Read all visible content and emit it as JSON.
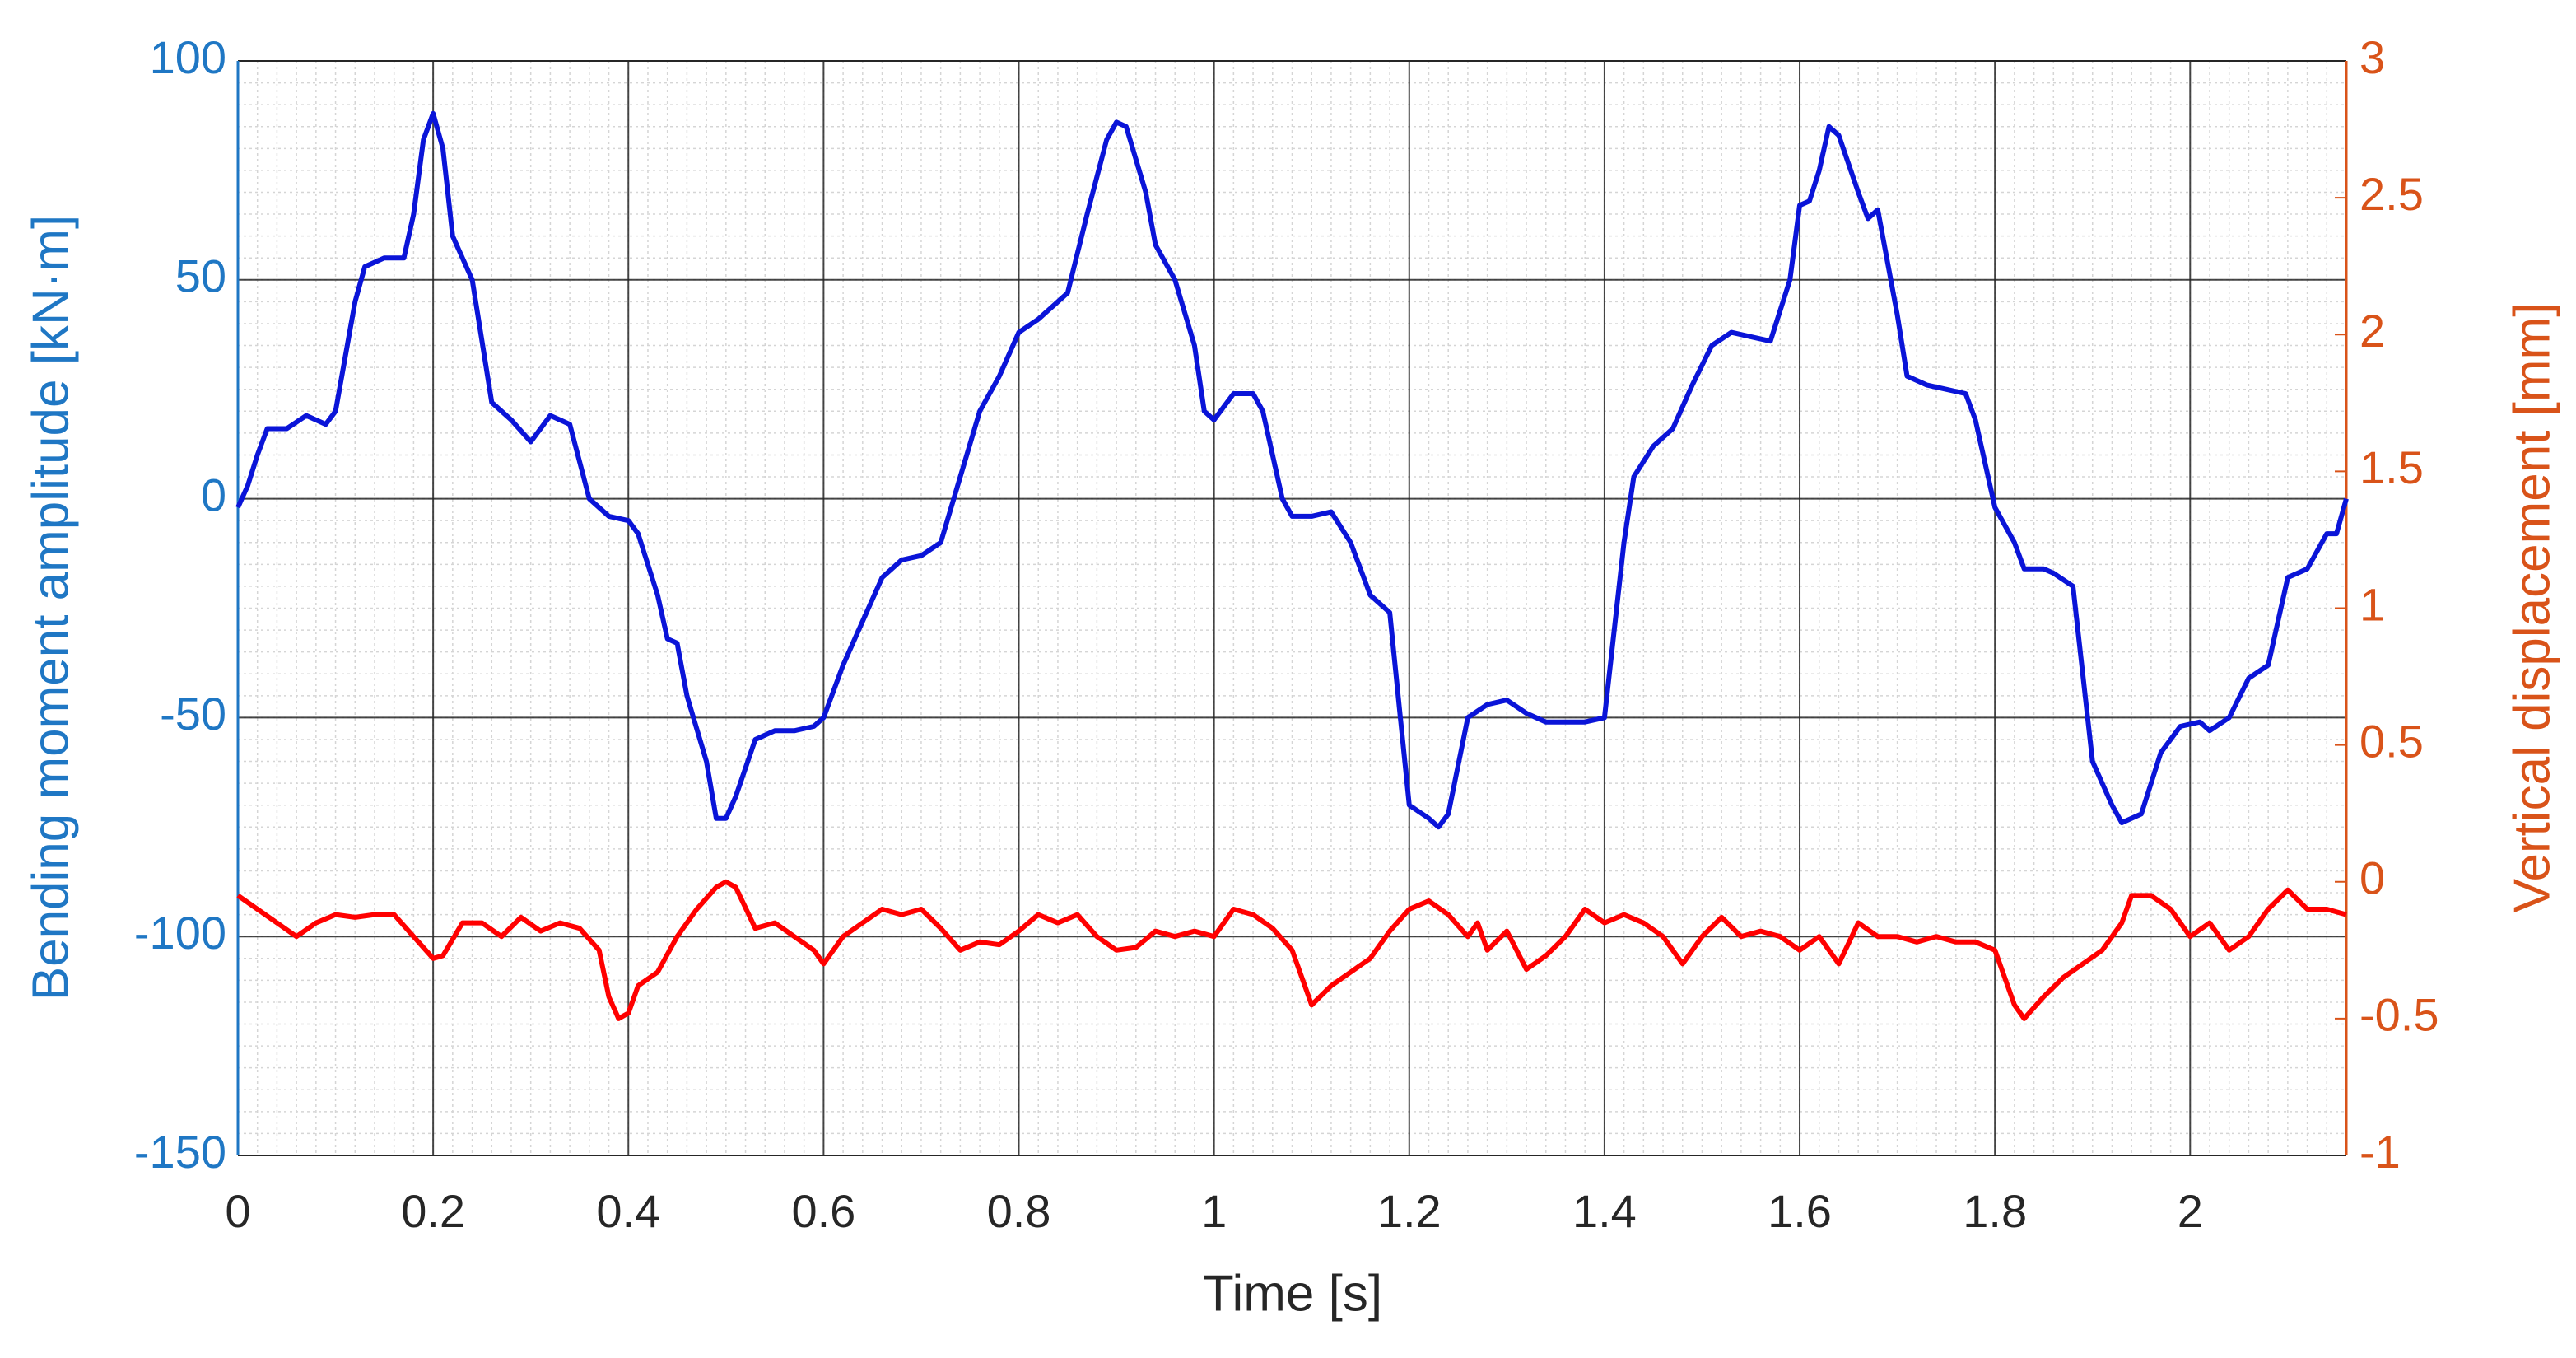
{
  "chart_data": {
    "type": "line",
    "xlabel": "Time [s]",
    "ylabel": "Bending moment amplitude [kN·m]",
    "y2label": "Vertical displacement [mm]",
    "xlim": [
      0,
      2.16
    ],
    "xticks": [
      0,
      0.2,
      0.4,
      0.6,
      0.8,
      1,
      1.2,
      1.4,
      1.6,
      1.8,
      2
    ],
    "ylim": [
      -150,
      100
    ],
    "yticks": [
      -150,
      -100,
      -50,
      0,
      50,
      100
    ],
    "y2lim": [
      -1,
      3
    ],
    "y2ticks": [
      -1,
      -0.5,
      0,
      0.5,
      1,
      1.5,
      2,
      2.5,
      3
    ],
    "grid": true,
    "minor_grid": true,
    "ylabel_color": "#1f77c4",
    "y2label_color": "#d95319",
    "series": [
      {
        "color": "#0a14d8",
        "x": [
          0,
          0.01,
          0.02,
          0.03,
          0.05,
          0.07,
          0.09,
          0.1,
          0.12,
          0.13,
          0.15,
          0.17,
          0.18,
          0.19,
          0.2,
          0.21,
          0.22,
          0.24,
          0.26,
          0.28,
          0.3,
          0.32,
          0.34,
          0.36,
          0.38,
          0.4,
          0.41,
          0.43,
          0.44,
          0.45,
          0.46,
          0.48,
          0.49,
          0.5,
          0.51,
          0.53,
          0.55,
          0.57,
          0.59,
          0.6,
          0.62,
          0.64,
          0.66,
          0.68,
          0.7,
          0.72,
          0.74,
          0.76,
          0.78,
          0.8,
          0.82,
          0.84,
          0.85,
          0.87,
          0.89,
          0.9,
          0.91,
          0.93,
          0.94,
          0.96,
          0.98,
          0.99,
          1,
          1.02,
          1.04,
          1.05,
          1.07,
          1.08,
          1.1,
          1.12,
          1.14,
          1.16,
          1.18,
          1.19,
          1.2,
          1.22,
          1.23,
          1.24,
          1.26,
          1.28,
          1.3,
          1.32,
          1.34,
          1.36,
          1.38,
          1.4,
          1.42,
          1.43,
          1.45,
          1.47,
          1.49,
          1.51,
          1.53,
          1.55,
          1.57,
          1.59,
          1.6,
          1.61,
          1.62,
          1.63,
          1.64,
          1.66,
          1.67,
          1.68,
          1.7,
          1.71,
          1.73,
          1.75,
          1.77,
          1.78,
          1.8,
          1.82,
          1.83,
          1.85,
          1.86,
          1.88,
          1.9,
          1.92,
          1.93,
          1.95,
          1.97,
          1.99,
          2.01,
          2.02,
          2.04,
          2.06,
          2.08,
          2.1,
          2.12,
          2.14,
          2.15,
          2.16
        ],
        "values": [
          -2,
          3,
          10,
          16,
          16,
          19,
          17,
          20,
          45,
          53,
          55,
          55,
          65,
          82,
          88,
          80,
          60,
          50,
          22,
          18,
          13,
          19,
          17,
          0,
          -4,
          -5,
          -8,
          -22,
          -32,
          -33,
          -45,
          -60,
          -73,
          -73,
          -68,
          -55,
          -53,
          -53,
          -52,
          -50,
          -38,
          -28,
          -18,
          -14,
          -13,
          -10,
          5,
          20,
          28,
          38,
          41,
          45,
          47,
          65,
          82,
          86,
          85,
          70,
          58,
          50,
          35,
          20,
          18,
          24,
          24,
          20,
          0,
          -4,
          -4,
          -3,
          -10,
          -22,
          -26,
          -48,
          -70,
          -73,
          -75,
          -72,
          -50,
          -47,
          -46,
          -49,
          -51,
          -51,
          -51,
          -50,
          -10,
          5,
          12,
          16,
          26,
          35,
          38,
          37,
          36,
          50,
          67,
          68,
          75,
          85,
          83,
          70,
          64,
          66,
          42,
          28,
          26,
          25,
          24,
          18,
          -2,
          -10,
          -16,
          -16,
          -17,
          -20,
          -60,
          -70,
          -74,
          -72,
          -58,
          -52,
          -51,
          -53,
          -50,
          -41,
          -38,
          -18,
          -16,
          -8,
          -8,
          0
        ]
      },
      {
        "color": "#ff0000",
        "axis": "y2",
        "x": [
          0,
          0.02,
          0.04,
          0.06,
          0.08,
          0.1,
          0.12,
          0.14,
          0.16,
          0.18,
          0.2,
          0.21,
          0.23,
          0.25,
          0.27,
          0.29,
          0.31,
          0.33,
          0.35,
          0.37,
          0.38,
          0.39,
          0.4,
          0.41,
          0.43,
          0.45,
          0.47,
          0.49,
          0.5,
          0.51,
          0.53,
          0.55,
          0.57,
          0.59,
          0.6,
          0.62,
          0.64,
          0.66,
          0.68,
          0.7,
          0.72,
          0.74,
          0.76,
          0.78,
          0.8,
          0.82,
          0.84,
          0.86,
          0.88,
          0.9,
          0.92,
          0.94,
          0.96,
          0.98,
          1,
          1.02,
          1.04,
          1.06,
          1.08,
          1.1,
          1.12,
          1.14,
          1.16,
          1.18,
          1.2,
          1.22,
          1.24,
          1.26,
          1.27,
          1.28,
          1.3,
          1.32,
          1.34,
          1.36,
          1.38,
          1.4,
          1.42,
          1.44,
          1.46,
          1.48,
          1.5,
          1.52,
          1.54,
          1.56,
          1.58,
          1.6,
          1.62,
          1.64,
          1.66,
          1.68,
          1.7,
          1.72,
          1.74,
          1.76,
          1.78,
          1.8,
          1.82,
          1.83,
          1.85,
          1.87,
          1.89,
          1.91,
          1.93,
          1.94,
          1.96,
          1.98,
          2,
          2.02,
          2.04,
          2.06,
          2.08,
          2.1,
          2.12,
          2.14,
          2.16
        ],
        "values": [
          -0.05,
          -0.1,
          -0.15,
          -0.2,
          -0.15,
          -0.12,
          -0.13,
          -0.12,
          -0.12,
          -0.2,
          -0.28,
          -0.27,
          -0.15,
          -0.15,
          -0.2,
          -0.13,
          -0.18,
          -0.15,
          -0.17,
          -0.25,
          -0.42,
          -0.5,
          -0.48,
          -0.38,
          -0.33,
          -0.2,
          -0.1,
          -0.02,
          0,
          -0.02,
          -0.17,
          -0.15,
          -0.2,
          -0.25,
          -0.3,
          -0.2,
          -0.15,
          -0.1,
          -0.12,
          -0.1,
          -0.17,
          -0.25,
          -0.22,
          -0.23,
          -0.18,
          -0.12,
          -0.15,
          -0.12,
          -0.2,
          -0.25,
          -0.24,
          -0.18,
          -0.2,
          -0.18,
          -0.2,
          -0.1,
          -0.12,
          -0.17,
          -0.25,
          -0.45,
          -0.38,
          -0.33,
          -0.28,
          -0.18,
          -0.1,
          -0.07,
          -0.12,
          -0.2,
          -0.15,
          -0.25,
          -0.18,
          -0.32,
          -0.27,
          -0.2,
          -0.1,
          -0.15,
          -0.12,
          -0.15,
          -0.2,
          -0.3,
          -0.2,
          -0.13,
          -0.2,
          -0.18,
          -0.2,
          -0.25,
          -0.2,
          -0.3,
          -0.15,
          -0.2,
          -0.2,
          -0.22,
          -0.2,
          -0.22,
          -0.22,
          -0.25,
          -0.45,
          -0.5,
          -0.42,
          -0.35,
          -0.3,
          -0.25,
          -0.15,
          -0.05,
          -0.05,
          -0.1,
          -0.2,
          -0.15,
          -0.25,
          -0.2,
          -0.1,
          -0.03,
          -0.1,
          -0.1,
          -0.12
        ]
      }
    ]
  }
}
